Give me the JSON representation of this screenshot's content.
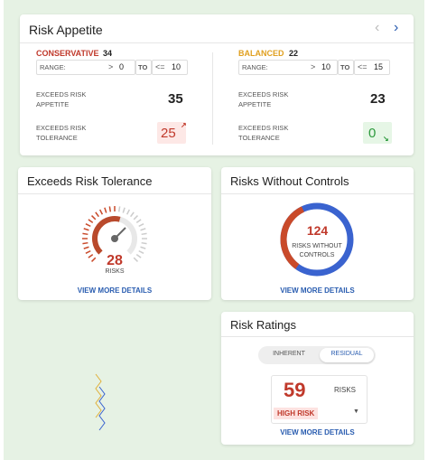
{
  "risk_appetite": {
    "title": "Risk Appetite",
    "groups": [
      {
        "name": "CONSERVATIVE",
        "count": 34,
        "range_label": "RANGE:",
        "from_op": ">",
        "from": 0,
        "to_label": "TO",
        "to_op": "<=",
        "to": 10,
        "appetite_label": "EXCEEDS RISK APPETITE",
        "appetite": 35,
        "tolerance_label": "EXCEEDS RISK TOLERANCE",
        "tolerance": 25
      },
      {
        "name": "BALANCED",
        "count": 22,
        "range_label": "RANGE:",
        "from_op": ">",
        "from": 10,
        "to_label": "TO",
        "to_op": "<=",
        "to": 15,
        "appetite_label": "EXCEEDS RISK APPETITE",
        "appetite": 23,
        "tolerance_label": "EXCEEDS RISK TOLERANCE",
        "tolerance": 0
      }
    ]
  },
  "exceeds_tolerance": {
    "title": "Exceeds Risk Tolerance",
    "value": 28,
    "unit": "RISKS",
    "link": "VIEW MORE DETAILS"
  },
  "without_controls": {
    "title": "Risks Without Controls",
    "value": 124,
    "label": "RISKS WITHOUT CONTROLS",
    "link": "VIEW MORE DETAILS"
  },
  "risk_ratings": {
    "title": "Risk Ratings",
    "tabs": [
      "INHERENT",
      "RESIDUAL"
    ],
    "value": 59,
    "unit": "RISKS",
    "level": "HIGH RISK",
    "link": "VIEW MORE DETAILS"
  }
}
